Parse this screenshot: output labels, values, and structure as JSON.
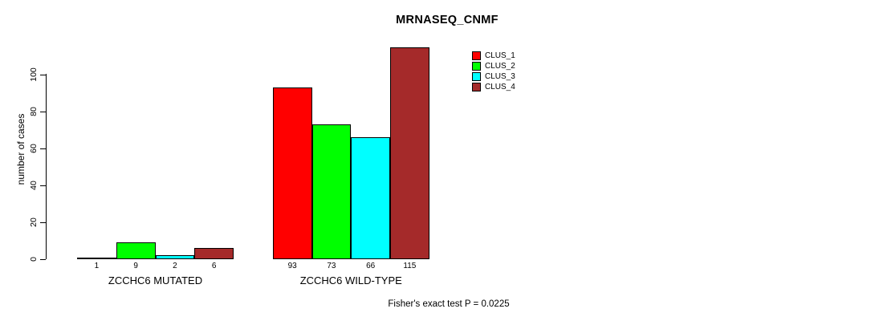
{
  "chart_data": {
    "type": "bar",
    "title": "MRNASEQ_CNMF",
    "ylabel": "number of cases",
    "annotation": "Fisher's exact test P = 0.0225",
    "categories": [
      "ZCCHC6 MUTATED",
      "ZCCHC6 WILD-TYPE"
    ],
    "series": [
      {
        "name": "CLUS_1",
        "color": "#FF0000",
        "values": [
          1,
          93
        ]
      },
      {
        "name": "CLUS_2",
        "color": "#00FF00",
        "values": [
          9,
          73
        ]
      },
      {
        "name": "CLUS_3",
        "color": "#00FFFF",
        "values": [
          2,
          66
        ]
      },
      {
        "name": "CLUS_4",
        "color": "#A52A2A",
        "values": [
          6,
          115
        ]
      }
    ],
    "yticks": [
      0,
      20,
      40,
      60,
      80,
      100
    ],
    "ylim": [
      0,
      115
    ],
    "grid": false,
    "legend_position": "top-right-inside",
    "bar_value_labels": true
  }
}
